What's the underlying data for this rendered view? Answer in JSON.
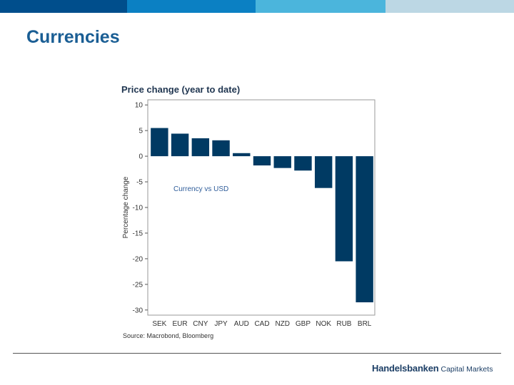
{
  "slide": {
    "title": "Currencies"
  },
  "footer": {
    "brand_name": "Handelsbanken",
    "brand_suffix": "Capital Markets"
  },
  "colors": {
    "bar": "#003a63",
    "title": "#1a5e94",
    "brand": "#1d3f66"
  },
  "chart_data": {
    "type": "bar",
    "title": "Price change (year to date)",
    "ylabel": "Percentage change",
    "xlabel": "",
    "annotation": "Currency vs USD",
    "source": "Source: Macrobond, Bloomberg",
    "categories": [
      "SEK",
      "EUR",
      "CNY",
      "JPY",
      "AUD",
      "CAD",
      "NZD",
      "GBP",
      "NOK",
      "RUB",
      "BRL"
    ],
    "values": [
      5.5,
      4.4,
      3.5,
      3.1,
      0.6,
      -1.8,
      -2.3,
      -2.8,
      -6.2,
      -20.5,
      -28.5
    ],
    "ylim": [
      -31,
      11
    ],
    "yticks": [
      10,
      5,
      0,
      -5,
      -10,
      -15,
      -20,
      -25,
      -30
    ],
    "grid": false,
    "legend": "none"
  }
}
